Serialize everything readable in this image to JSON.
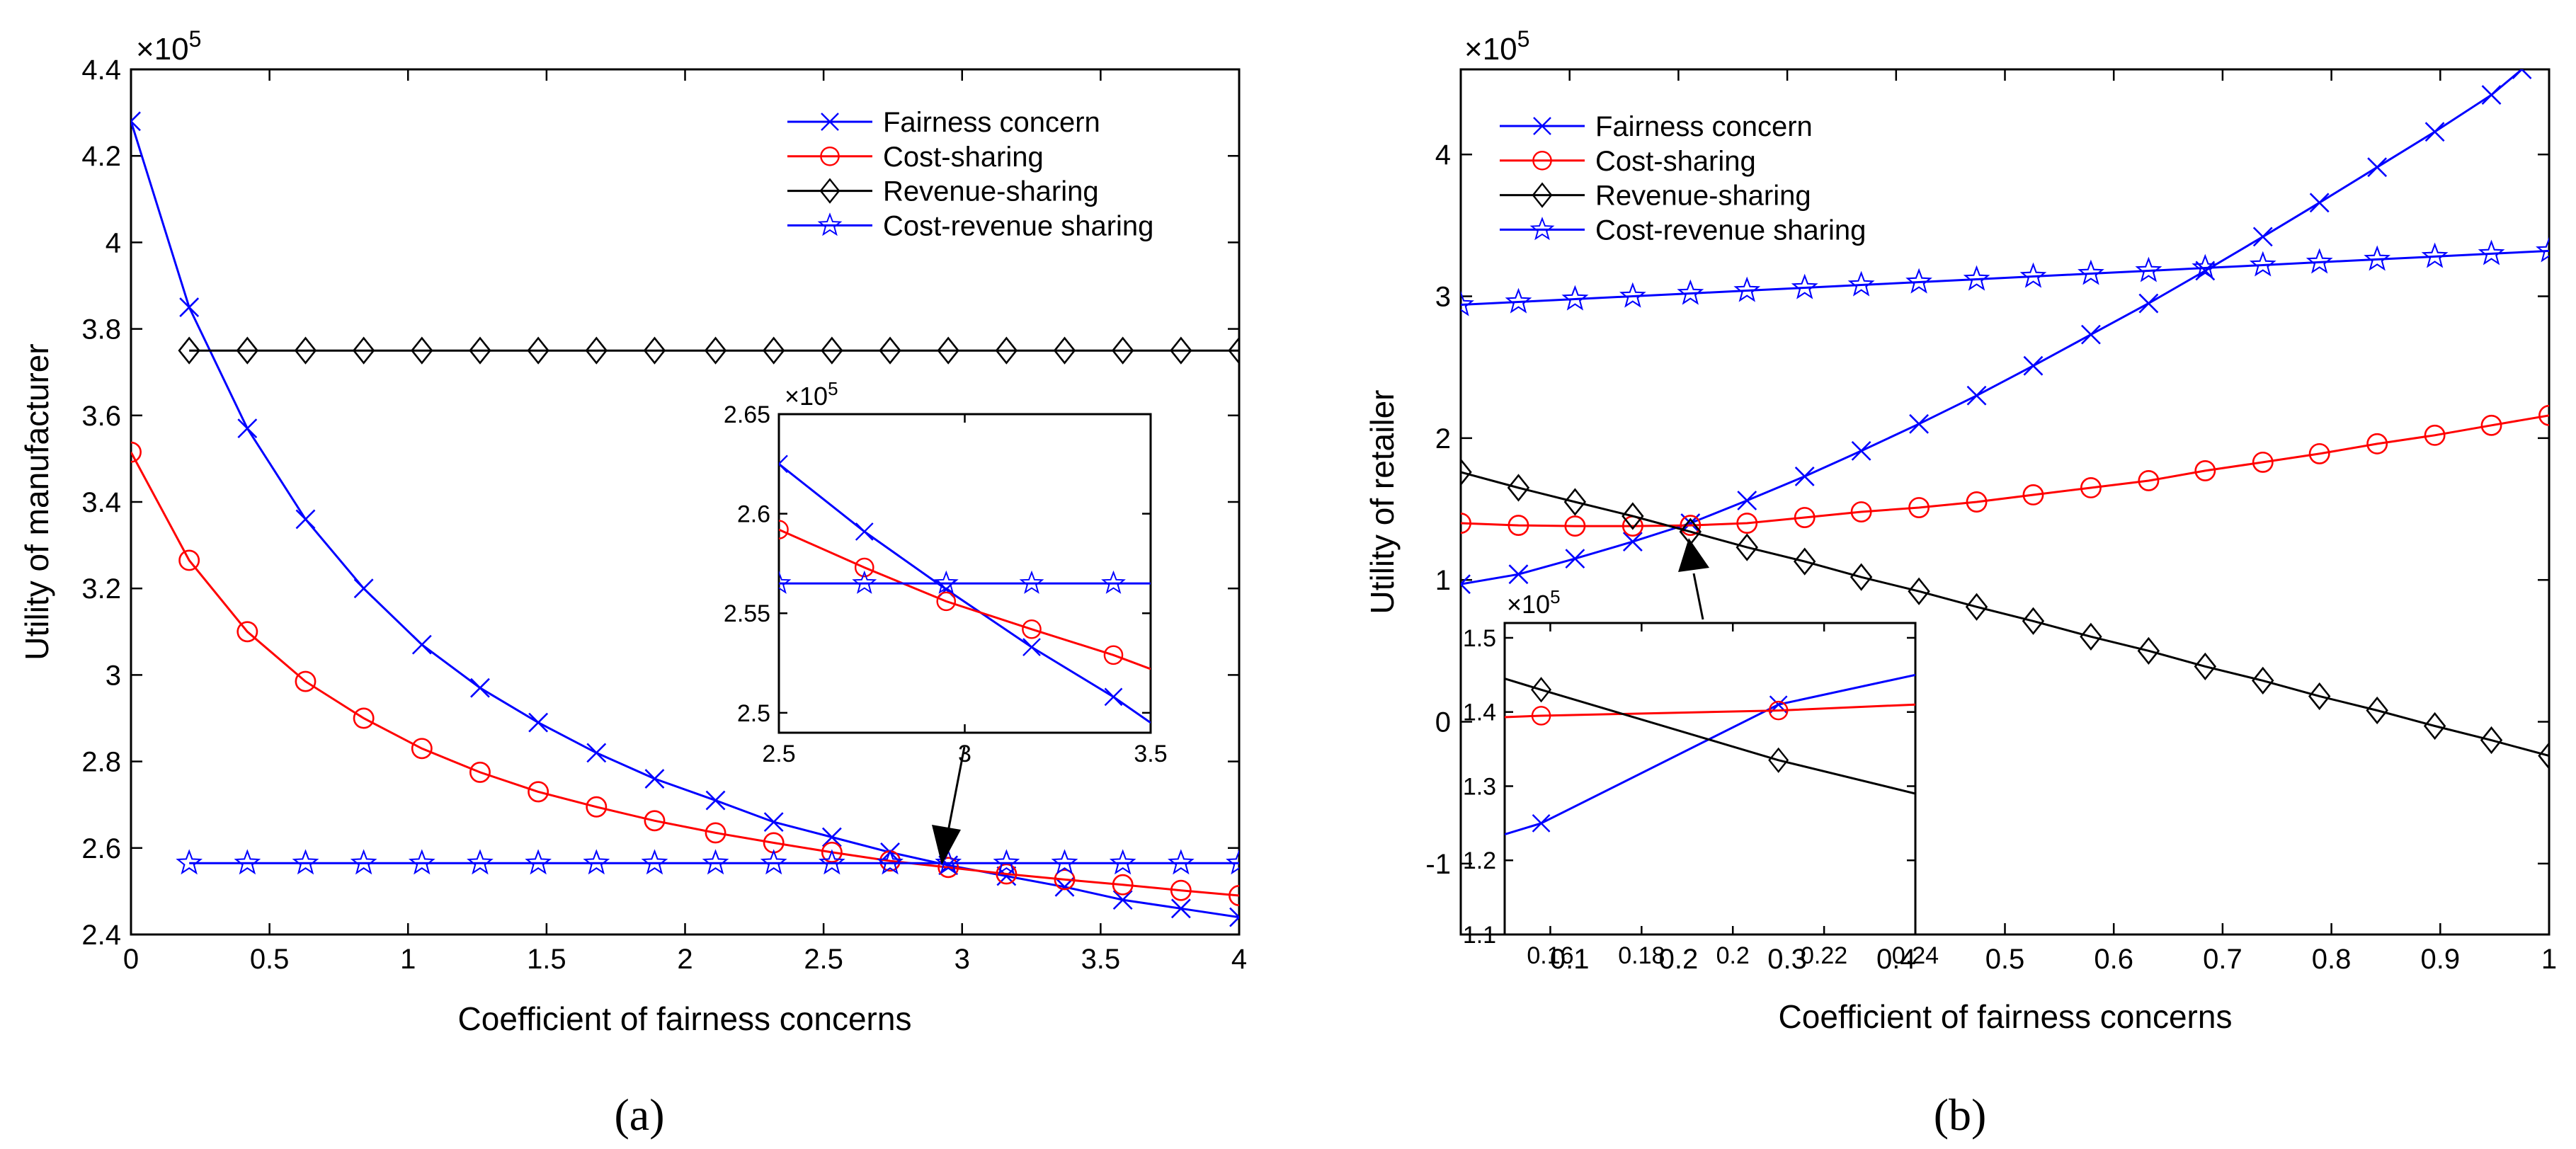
{
  "colors": {
    "blue": "#0000ff",
    "red": "#ff0000",
    "black": "#000000"
  },
  "chart_data": [
    {
      "type": "line",
      "panel_label": "(a)",
      "xlabel": "Coefficient of fairness concerns",
      "ylabel": "Utility of manufacturer",
      "exponent": "×10",
      "exponent_power": "5",
      "xlim": [
        0,
        4
      ],
      "ylim": [
        2.4,
        4.4
      ],
      "xticks": [
        0,
        0.5,
        1,
        1.5,
        2,
        2.5,
        3,
        3.5,
        4
      ],
      "xtick_labels": [
        "0",
        "0.5",
        "1",
        "1.5",
        "2",
        "2.5",
        "3",
        "3.5",
        "4"
      ],
      "yticks": [
        2.4,
        2.6,
        2.8,
        3,
        3.2,
        3.4,
        3.6,
        3.8,
        4,
        4.2,
        4.4
      ],
      "ytick_labels": [
        "2.4",
        "2.6",
        "2.8",
        "3",
        "3.2",
        "3.4",
        "3.6",
        "3.8",
        "4",
        "4.2",
        "4.4"
      ],
      "legend_position": "top-right",
      "series": [
        {
          "name": "Fairness concern",
          "color": "#0000ff",
          "marker": "x",
          "x": [
            0,
            0.21,
            0.42,
            0.63,
            0.84,
            1.05,
            1.26,
            1.47,
            1.68,
            1.89,
            2.11,
            2.32,
            2.53,
            2.74,
            2.95,
            3.16,
            3.37,
            3.58,
            3.79,
            4.0
          ],
          "y": [
            4.28,
            3.85,
            3.57,
            3.36,
            3.2,
            3.07,
            2.97,
            2.89,
            2.82,
            2.76,
            2.71,
            2.66,
            2.625,
            2.59,
            2.56,
            2.535,
            2.51,
            2.48,
            2.46,
            2.44
          ]
        },
        {
          "name": "Cost-sharing",
          "color": "#ff0000",
          "marker": "o",
          "x": [
            0,
            0.21,
            0.42,
            0.63,
            0.84,
            1.05,
            1.26,
            1.47,
            1.68,
            1.89,
            2.11,
            2.32,
            2.53,
            2.74,
            2.95,
            3.16,
            3.37,
            3.58,
            3.79,
            4.0
          ],
          "y": [
            3.515,
            3.265,
            3.1,
            2.985,
            2.9,
            2.83,
            2.775,
            2.73,
            2.695,
            2.663,
            2.635,
            2.612,
            2.59,
            2.57,
            2.555,
            2.54,
            2.527,
            2.515,
            2.502,
            2.49
          ]
        },
        {
          "name": "Revenue-sharing",
          "color": "#000000",
          "marker": "diamond",
          "x": [
            0.21,
            0.42,
            0.63,
            0.84,
            1.05,
            1.26,
            1.47,
            1.68,
            1.89,
            2.11,
            2.32,
            2.53,
            2.74,
            2.95,
            3.16,
            3.37,
            3.58,
            3.79,
            4.0
          ],
          "y": [
            3.75,
            3.75,
            3.75,
            3.75,
            3.75,
            3.75,
            3.75,
            3.75,
            3.75,
            3.75,
            3.75,
            3.75,
            3.75,
            3.75,
            3.75,
            3.75,
            3.75,
            3.75,
            3.75
          ]
        },
        {
          "name": "Cost-revenue sharing",
          "color": "#0000ff",
          "marker": "star",
          "x": [
            0.21,
            0.42,
            0.63,
            0.84,
            1.05,
            1.26,
            1.47,
            1.68,
            1.89,
            2.11,
            2.32,
            2.53,
            2.74,
            2.95,
            3.16,
            3.37,
            3.58,
            3.79,
            4.0
          ],
          "y": [
            2.565,
            2.565,
            2.565,
            2.565,
            2.565,
            2.565,
            2.565,
            2.565,
            2.565,
            2.565,
            2.565,
            2.565,
            2.565,
            2.565,
            2.565,
            2.565,
            2.565,
            2.565,
            2.565
          ]
        }
      ],
      "inset": {
        "exponent": "×10",
        "exponent_power": "5",
        "xlim": [
          2.5,
          3.5
        ],
        "ylim": [
          2.49,
          2.65
        ],
        "xticks": [
          2.5,
          3,
          3.5
        ],
        "xtick_labels": [
          "2.5",
          "3",
          "3.5"
        ],
        "yticks": [
          2.5,
          2.55,
          2.6,
          2.65
        ],
        "ytick_labels": [
          "2.5",
          "2.55",
          "2.6",
          "2.65"
        ],
        "series": [
          {
            "name": "Fairness concern",
            "color": "#0000ff",
            "marker": "x",
            "x": [
              2.5,
              2.73,
              2.95,
              3.18,
              3.4,
              3.5
            ],
            "y": [
              2.625,
              2.591,
              2.562,
              2.533,
              2.508,
              2.495
            ],
            "marker_count": 5
          },
          {
            "name": "Cost-sharing",
            "color": "#ff0000",
            "marker": "o",
            "x": [
              2.5,
              2.73,
              2.95,
              3.18,
              3.4,
              3.5
            ],
            "y": [
              2.592,
              2.573,
              2.556,
              2.542,
              2.529,
              2.522
            ],
            "marker_count": 5
          },
          {
            "name": "Cost-revenue sharing",
            "color": "#0000ff",
            "marker": "star",
            "x": [
              2.5,
              2.73,
              2.95,
              3.18,
              3.4,
              3.5
            ],
            "y": [
              2.565,
              2.565,
              2.565,
              2.565,
              2.565,
              2.565
            ],
            "marker_count": 5
          }
        ]
      }
    },
    {
      "type": "line",
      "panel_label": "(b)",
      "xlabel": "Coefficient of fairness concerns",
      "ylabel": "Utility of retailer",
      "exponent": "×10",
      "exponent_power": "5",
      "xlim": [
        0,
        1
      ],
      "ylim": [
        -1.5,
        4.6
      ],
      "xticks": [
        0.1,
        0.2,
        0.3,
        0.4,
        0.5,
        0.6,
        0.7,
        0.8,
        0.9,
        1
      ],
      "xtick_labels": [
        "0.1",
        "0.2",
        "0.3",
        "0.4",
        "0.5",
        "0.6",
        "0.7",
        "0.8",
        "0.9",
        "1"
      ],
      "yticks": [
        -1,
        0,
        1,
        2,
        3,
        4
      ],
      "ytick_labels": [
        "-1",
        "0",
        "1",
        "2",
        "3",
        "4"
      ],
      "legend_position": "top-left",
      "series": [
        {
          "name": "Fairness concern",
          "color": "#0000ff",
          "marker": "x",
          "x": [
            0,
            0.053,
            0.105,
            0.158,
            0.211,
            0.263,
            0.316,
            0.368,
            0.421,
            0.474,
            0.526,
            0.579,
            0.632,
            0.684,
            0.737,
            0.789,
            0.842,
            0.895,
            0.947,
            0.975
          ],
          "y": [
            0.97,
            1.04,
            1.15,
            1.27,
            1.4,
            1.56,
            1.73,
            1.91,
            2.1,
            2.3,
            2.51,
            2.73,
            2.95,
            3.18,
            3.42,
            3.66,
            3.91,
            4.16,
            4.42,
            4.6
          ]
        },
        {
          "name": "Cost-sharing",
          "color": "#ff0000",
          "marker": "o",
          "x": [
            0,
            0.053,
            0.105,
            0.158,
            0.211,
            0.263,
            0.316,
            0.368,
            0.421,
            0.474,
            0.526,
            0.579,
            0.632,
            0.684,
            0.737,
            0.789,
            0.842,
            0.895,
            0.947,
            1.0
          ],
          "y": [
            1.4,
            1.385,
            1.38,
            1.38,
            1.385,
            1.4,
            1.44,
            1.48,
            1.51,
            1.55,
            1.6,
            1.65,
            1.7,
            1.77,
            1.83,
            1.89,
            1.96,
            2.02,
            2.09,
            2.16
          ]
        },
        {
          "name": "Revenue-sharing",
          "color": "#000000",
          "marker": "diamond",
          "x": [
            0,
            0.053,
            0.105,
            0.158,
            0.211,
            0.263,
            0.316,
            0.368,
            0.421,
            0.474,
            0.526,
            0.579,
            0.632,
            0.684,
            0.737,
            0.789,
            0.842,
            0.895,
            0.947,
            1.0
          ],
          "y": [
            1.76,
            1.65,
            1.55,
            1.45,
            1.34,
            1.23,
            1.13,
            1.02,
            0.92,
            0.81,
            0.71,
            0.6,
            0.5,
            0.39,
            0.29,
            0.18,
            0.08,
            -0.03,
            -0.13,
            -0.24
          ]
        },
        {
          "name": "Cost-revenue sharing",
          "color": "#0000ff",
          "marker": "star",
          "x": [
            0,
            0.053,
            0.105,
            0.158,
            0.211,
            0.263,
            0.316,
            0.368,
            0.421,
            0.474,
            0.526,
            0.579,
            0.632,
            0.684,
            0.737,
            0.789,
            0.842,
            0.895,
            0.947,
            1.0
          ],
          "y": [
            2.94,
            2.96,
            2.98,
            3.0,
            3.02,
            3.04,
            3.06,
            3.08,
            3.1,
            3.12,
            3.14,
            3.16,
            3.18,
            3.2,
            3.22,
            3.24,
            3.26,
            3.28,
            3.3,
            3.32
          ]
        }
      ],
      "inset": {
        "exponent": "×10",
        "exponent_power": "5",
        "xlim": [
          0.15,
          0.24
        ],
        "ylim": [
          1.1,
          1.52
        ],
        "xticks": [
          0.16,
          0.18,
          0.2,
          0.22,
          0.24
        ],
        "xtick_labels": [
          "0.16",
          "0.18",
          "0.2",
          "0.22",
          "0.24"
        ],
        "yticks": [
          1.1,
          1.2,
          1.3,
          1.4,
          1.5
        ],
        "ytick_labels": [
          "1.1",
          "1.2",
          "1.3",
          "1.4",
          "1.5"
        ],
        "series": [
          {
            "name": "Fairness concern",
            "color": "#0000ff",
            "marker": "x",
            "x": [
              0.15,
              0.158,
              0.21,
              0.24
            ],
            "y": [
              1.235,
              1.25,
              1.41,
              1.45
            ],
            "marker_idx": [
              1,
              2
            ]
          },
          {
            "name": "Cost-sharing",
            "color": "#ff0000",
            "marker": "o",
            "x": [
              0.15,
              0.158,
              0.21,
              0.24
            ],
            "y": [
              1.393,
              1.395,
              1.402,
              1.41
            ],
            "marker_idx": [
              1,
              2
            ]
          },
          {
            "name": "Revenue-sharing",
            "color": "#000000",
            "marker": "diamond",
            "x": [
              0.15,
              0.158,
              0.21,
              0.24
            ],
            "y": [
              1.445,
              1.43,
              1.335,
              1.29
            ],
            "marker_idx": [
              1,
              2
            ]
          }
        ]
      }
    }
  ]
}
